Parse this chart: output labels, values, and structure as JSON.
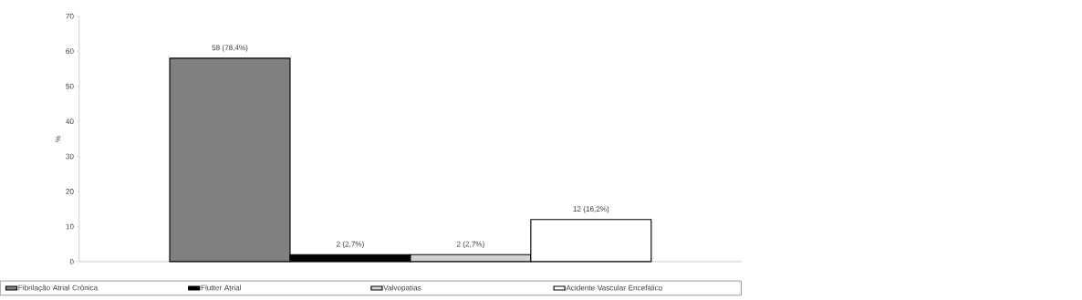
{
  "chart_data": {
    "type": "bar",
    "ylabel": "%",
    "categories": [
      null
    ],
    "ylim": [
      0,
      70
    ],
    "yticks": [
      0,
      10,
      20,
      30,
      40,
      50,
      60,
      70
    ],
    "legend": "bottom",
    "series": [
      {
        "name": "Fibrilação Atrial Crônica",
        "color": "#808080",
        "values": [
          58
        ],
        "value_labels": [
          "58 (78,4%)"
        ]
      },
      {
        "name": "Flutter Atrial",
        "color": "#000000",
        "values": [
          2
        ],
        "value_labels": [
          "2 (2,7%)"
        ]
      },
      {
        "name": "Valvopatias",
        "color": "#d0d2d3",
        "values": [
          2
        ],
        "value_labels": [
          "2 (2,7%)"
        ]
      },
      {
        "name": "Acidente Vascular Encefálico",
        "color": "#ffffff",
        "values": [
          12
        ],
        "value_labels": [
          "12 (16,2%)"
        ]
      }
    ]
  }
}
